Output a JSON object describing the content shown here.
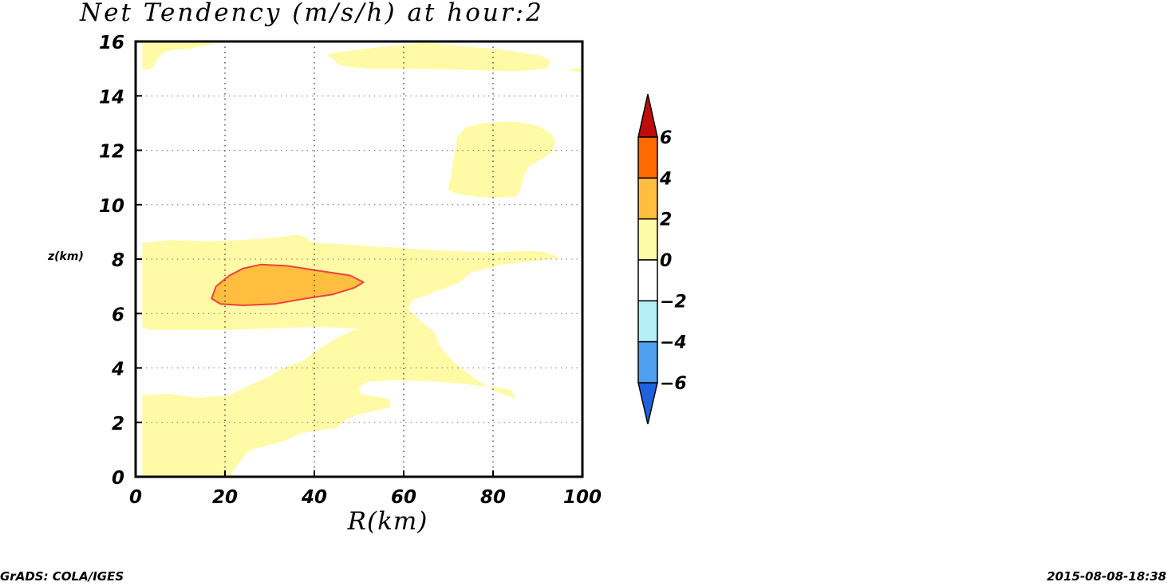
{
  "chart_data": {
    "type": "heatmap",
    "title": "Net Tendency (m/s/h) at hour:2",
    "xlabel": "R(km)",
    "ylabel": "z(km)",
    "xlim": [
      0,
      100
    ],
    "ylim": [
      0,
      16
    ],
    "x_ticks": [
      0,
      20,
      40,
      60,
      80,
      100
    ],
    "y_ticks": [
      0,
      2,
      4,
      6,
      8,
      10,
      12,
      14,
      16
    ],
    "grid": true,
    "colorbar": {
      "levels": [
        -6,
        -4,
        -2,
        0,
        2,
        4,
        6
      ],
      "colors": [
        "#1f62e0",
        "#4ea0ee",
        "#b4eef6",
        "#ffffff",
        "#fefaa6",
        "#ffbe40",
        "#ff6a00",
        "#c00c0c"
      ],
      "extend": "both",
      "placement": "right"
    },
    "regions": [
      {
        "level": "0 to 2",
        "color": "#fefaa6",
        "points": [
          [
            1.5,
            0
          ],
          [
            1.5,
            3
          ],
          [
            7,
            3.05
          ],
          [
            14,
            2.9
          ],
          [
            21,
            3
          ],
          [
            26,
            3.4
          ],
          [
            30,
            3.7
          ],
          [
            33,
            4
          ],
          [
            38,
            4.3
          ],
          [
            40,
            4.6
          ],
          [
            45,
            5.1
          ],
          [
            49,
            5.4
          ],
          [
            51,
            5.4
          ],
          [
            49,
            5.45
          ],
          [
            44,
            5.5
          ],
          [
            38,
            5.5
          ],
          [
            30,
            5.45
          ],
          [
            20,
            5.4
          ],
          [
            10,
            5.4
          ],
          [
            3,
            5.4
          ],
          [
            1.5,
            5.5
          ],
          [
            1.5,
            8.6
          ],
          [
            8,
            8.7
          ],
          [
            16,
            8.65
          ],
          [
            24,
            8.7
          ],
          [
            32,
            8.8
          ],
          [
            36,
            8.9
          ],
          [
            38,
            8.8
          ],
          [
            40,
            8.6
          ],
          [
            50,
            8.5
          ],
          [
            60,
            8.4
          ],
          [
            70,
            8.3
          ],
          [
            80,
            8.25
          ],
          [
            88,
            8.3
          ],
          [
            92,
            8.25
          ],
          [
            95,
            8.05
          ],
          [
            90,
            7.95
          ],
          [
            82,
            7.8
          ],
          [
            75,
            7.5
          ],
          [
            72,
            7.1
          ],
          [
            67,
            6.8
          ],
          [
            62,
            6.5
          ],
          [
            61,
            6.15
          ],
          [
            64,
            5.7
          ],
          [
            67,
            5.3
          ],
          [
            68,
            4.8
          ],
          [
            71,
            4.25
          ],
          [
            76,
            3.6
          ],
          [
            81,
            3.1
          ],
          [
            85,
            2.9
          ],
          [
            84,
            3.2
          ],
          [
            80,
            3.3
          ],
          [
            74,
            3.4
          ],
          [
            68,
            3.5
          ],
          [
            58,
            3.55
          ],
          [
            52,
            3.5
          ],
          [
            50,
            3.3
          ],
          [
            50,
            3.05
          ],
          [
            57,
            2.85
          ],
          [
            57,
            2.55
          ],
          [
            50,
            2.3
          ],
          [
            47,
            2.1
          ],
          [
            45,
            1.8
          ],
          [
            37,
            1.6
          ],
          [
            33,
            1.3
          ],
          [
            26,
            1
          ],
          [
            25,
            0.9
          ],
          [
            23,
            0.5
          ],
          [
            21,
            0
          ],
          [
            1.5,
            0
          ]
        ]
      },
      {
        "level": "0 to 2",
        "color": "#fefaa6",
        "points": [
          [
            1.5,
            15
          ],
          [
            2.5,
            14.95
          ],
          [
            4,
            15.05
          ],
          [
            5,
            15.4
          ],
          [
            6.5,
            15.6
          ],
          [
            8.5,
            15.7
          ],
          [
            12,
            15.72
          ],
          [
            14,
            15.8
          ],
          [
            17,
            15.9
          ],
          [
            20,
            16
          ],
          [
            1.5,
            16
          ],
          [
            1.5,
            15
          ]
        ]
      },
      {
        "level": "0 to 2",
        "color": "#fefaa6",
        "points": [
          [
            43,
            15.5
          ],
          [
            45,
            15.6
          ],
          [
            55,
            15.8
          ],
          [
            65,
            15.95
          ],
          [
            82,
            15.7
          ],
          [
            90,
            15.5
          ],
          [
            93,
            15.3
          ],
          [
            92,
            15
          ],
          [
            85,
            14.9
          ],
          [
            75,
            14.95
          ],
          [
            60,
            15
          ],
          [
            52,
            15
          ],
          [
            46,
            15.1
          ],
          [
            43,
            15.5
          ]
        ]
      },
      {
        "level": "0 to 2",
        "color": "#fefaa6",
        "points": [
          [
            97,
            15
          ],
          [
            100,
            15
          ],
          [
            100,
            14.85
          ],
          [
            97,
            14.95
          ],
          [
            97,
            15
          ]
        ]
      },
      {
        "level": "0 to 2",
        "color": "#fefaa6",
        "points": [
          [
            71,
            11.5
          ],
          [
            72,
            12.5
          ],
          [
            74,
            12.85
          ],
          [
            78,
            13
          ],
          [
            82,
            13.05
          ],
          [
            85,
            13.05
          ],
          [
            90,
            12.9
          ],
          [
            93,
            12.6
          ],
          [
            94,
            12.3
          ],
          [
            93,
            11.9
          ],
          [
            90,
            11.6
          ],
          [
            88,
            11.4
          ],
          [
            87,
            11.1
          ],
          [
            86.5,
            10.8
          ],
          [
            86,
            10.5
          ],
          [
            85,
            10.3
          ],
          [
            80,
            10.25
          ],
          [
            76,
            10.3
          ],
          [
            72,
            10.4
          ],
          [
            70,
            10.55
          ],
          [
            70.5,
            11
          ],
          [
            71,
            11.5
          ]
        ]
      },
      {
        "level": "2 to 4",
        "color": "#ffbe40",
        "outline": "#f04040",
        "points": [
          [
            17,
            6.55
          ],
          [
            18,
            7
          ],
          [
            21,
            7.4
          ],
          [
            24,
            7.65
          ],
          [
            28,
            7.8
          ],
          [
            34,
            7.75
          ],
          [
            40,
            7.6
          ],
          [
            48,
            7.4
          ],
          [
            51,
            7.15
          ],
          [
            49,
            6.95
          ],
          [
            44,
            6.7
          ],
          [
            38,
            6.55
          ],
          [
            31,
            6.35
          ],
          [
            24,
            6.3
          ],
          [
            19,
            6.35
          ],
          [
            17,
            6.55
          ]
        ]
      }
    ]
  },
  "footer": {
    "left": "GrADS: COLA/IGES",
    "right": "2015-08-08-18:38"
  }
}
